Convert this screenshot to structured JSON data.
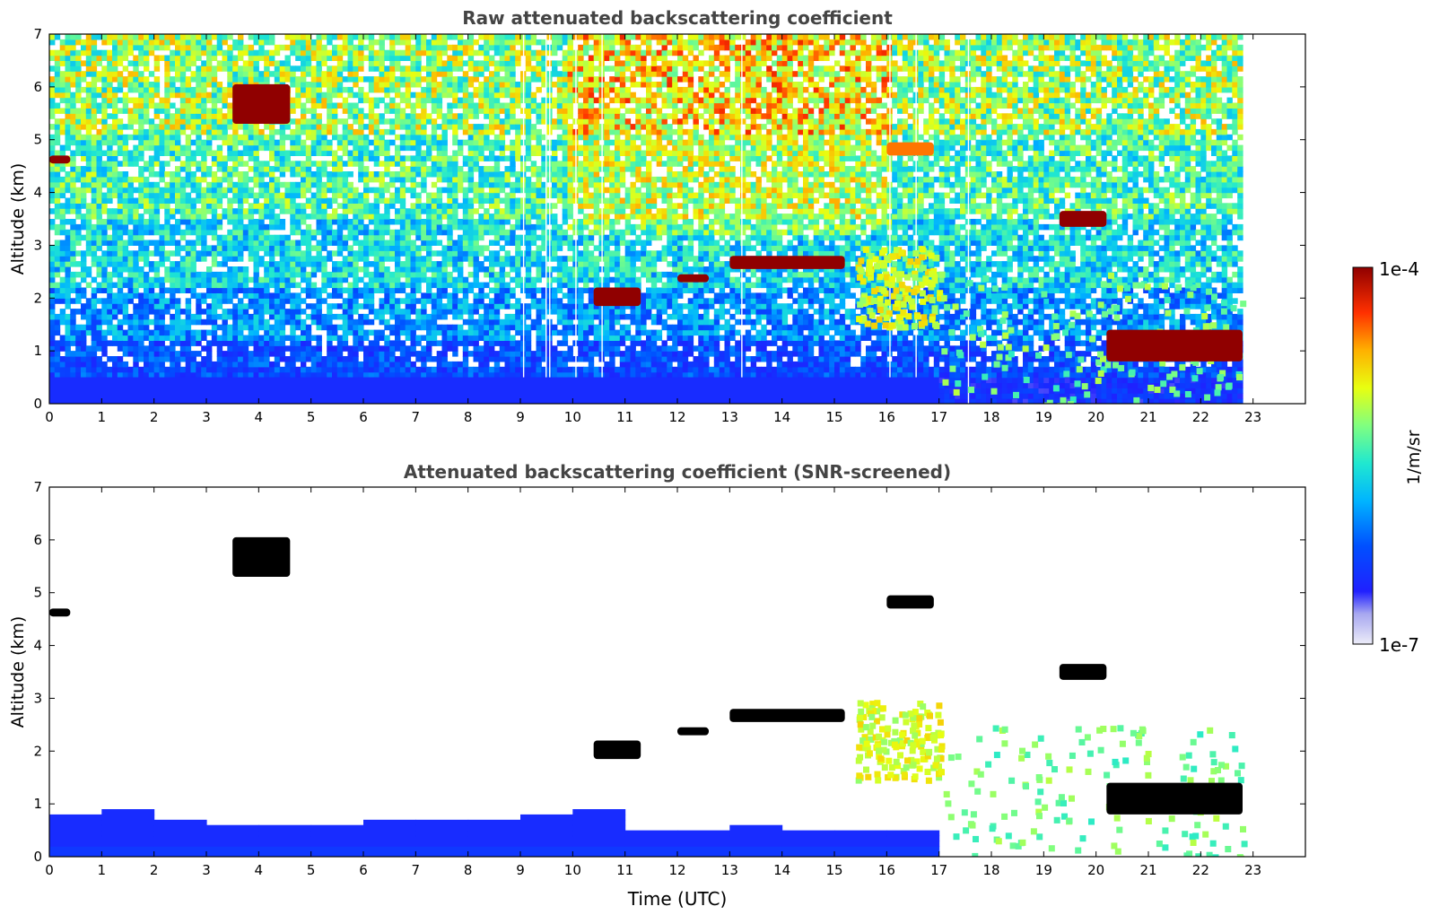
{
  "chart_data": [
    {
      "type": "heatmap",
      "title": "Raw attenuated backscattering coefficient",
      "ylabel": "Altitude (km)",
      "xlabel": "",
      "xlim": [
        0,
        24
      ],
      "ylim": [
        0,
        7
      ],
      "x_ticks": [
        "0",
        "1",
        "2",
        "3",
        "4",
        "5",
        "6",
        "7",
        "8",
        "9",
        "10",
        "11",
        "12",
        "13",
        "14",
        "15",
        "16",
        "17",
        "18",
        "19",
        "20",
        "21",
        "22",
        "23"
      ],
      "y_ticks": [
        "0",
        "1",
        "2",
        "3",
        "4",
        "5",
        "6",
        "7"
      ],
      "data_end_hour": 22.8,
      "data_gaps_hours": [
        9.05,
        9.48,
        9.55,
        10.05,
        10.55,
        13.22,
        16.05,
        16.55,
        17.55
      ],
      "features": [
        {
          "kind": "boundary-layer",
          "x": [
            0,
            17
          ],
          "y": [
            0,
            0.5
          ],
          "value": "1e-6"
        },
        {
          "kind": "cloud",
          "x": [
            0,
            0.4
          ],
          "y": [
            4.55,
            4.7
          ],
          "value": "1e-4"
        },
        {
          "kind": "cloud",
          "x": [
            3.5,
            4.6
          ],
          "y": [
            5.3,
            6.05
          ],
          "value": "1e-4"
        },
        {
          "kind": "cloud",
          "x": [
            10.4,
            11.3
          ],
          "y": [
            1.85,
            2.2
          ],
          "value": "1e-4"
        },
        {
          "kind": "cloud",
          "x": [
            12.0,
            12.6
          ],
          "y": [
            2.3,
            2.45
          ],
          "value": "1e-4"
        },
        {
          "kind": "cloud",
          "x": [
            13.0,
            15.2
          ],
          "y": [
            2.55,
            2.8
          ],
          "value": "1e-4"
        },
        {
          "kind": "cloud",
          "x": [
            19.3,
            20.2
          ],
          "y": [
            3.35,
            3.65
          ],
          "value": "1e-4"
        },
        {
          "kind": "cloud",
          "x": [
            16.0,
            16.9
          ],
          "y": [
            4.7,
            4.95
          ],
          "value": "3e-5"
        },
        {
          "kind": "aerosol",
          "x": [
            15.4,
            17.0
          ],
          "y": [
            1.5,
            3.0
          ],
          "value": "1e-5"
        },
        {
          "kind": "aerosol",
          "x": [
            17.0,
            22.8
          ],
          "y": [
            0,
            2.5
          ],
          "value": "5e-6"
        },
        {
          "kind": "cloud-base",
          "x": [
            20.2,
            22.8
          ],
          "y": [
            0.8,
            1.4
          ],
          "value": "1e-4"
        }
      ]
    },
    {
      "type": "heatmap",
      "title": "Attenuated backscattering coefficient (SNR-screened)",
      "ylabel": "Altitude (km)",
      "xlabel": "Time (UTC)",
      "xlim": [
        0,
        24
      ],
      "ylim": [
        0,
        7
      ],
      "x_ticks": [
        "0",
        "1",
        "2",
        "3",
        "4",
        "5",
        "6",
        "7",
        "8",
        "9",
        "10",
        "11",
        "12",
        "13",
        "14",
        "15",
        "16",
        "17",
        "18",
        "19",
        "20",
        "21",
        "22",
        "23"
      ],
      "y_ticks": [
        "0",
        "1",
        "2",
        "3",
        "4",
        "5",
        "6",
        "7"
      ],
      "data_end_hour": 22.8,
      "screened_boundary_layer_top_km": [
        0.75,
        0.8,
        0.65,
        0.6,
        0.55,
        0.6,
        0.65,
        0.7,
        0.7,
        0.75,
        0.8,
        0.5,
        0.5,
        0.55,
        0.5,
        0.5,
        0.5,
        0.5
      ]
    }
  ],
  "colorbar": {
    "label": "1/m/sr",
    "max_label": "1e-4",
    "min_label": "1e-7",
    "scale": "log",
    "colormap": "jet"
  },
  "colors": {
    "frame": "#000000",
    "title": "#444444",
    "background": "#ffffff"
  }
}
